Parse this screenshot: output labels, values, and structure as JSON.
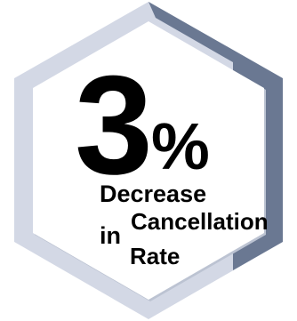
{
  "stat": {
    "number": "3",
    "unit": "%",
    "label_line1": "Decrease",
    "label_in": "in",
    "label_cancellation": "Cancellation",
    "label_rate": "Rate"
  },
  "colors": {
    "frame_light": "#d3d8e5",
    "frame_dark": "#6a7892",
    "hex_fill": "#ffffff",
    "text": "#000000"
  }
}
